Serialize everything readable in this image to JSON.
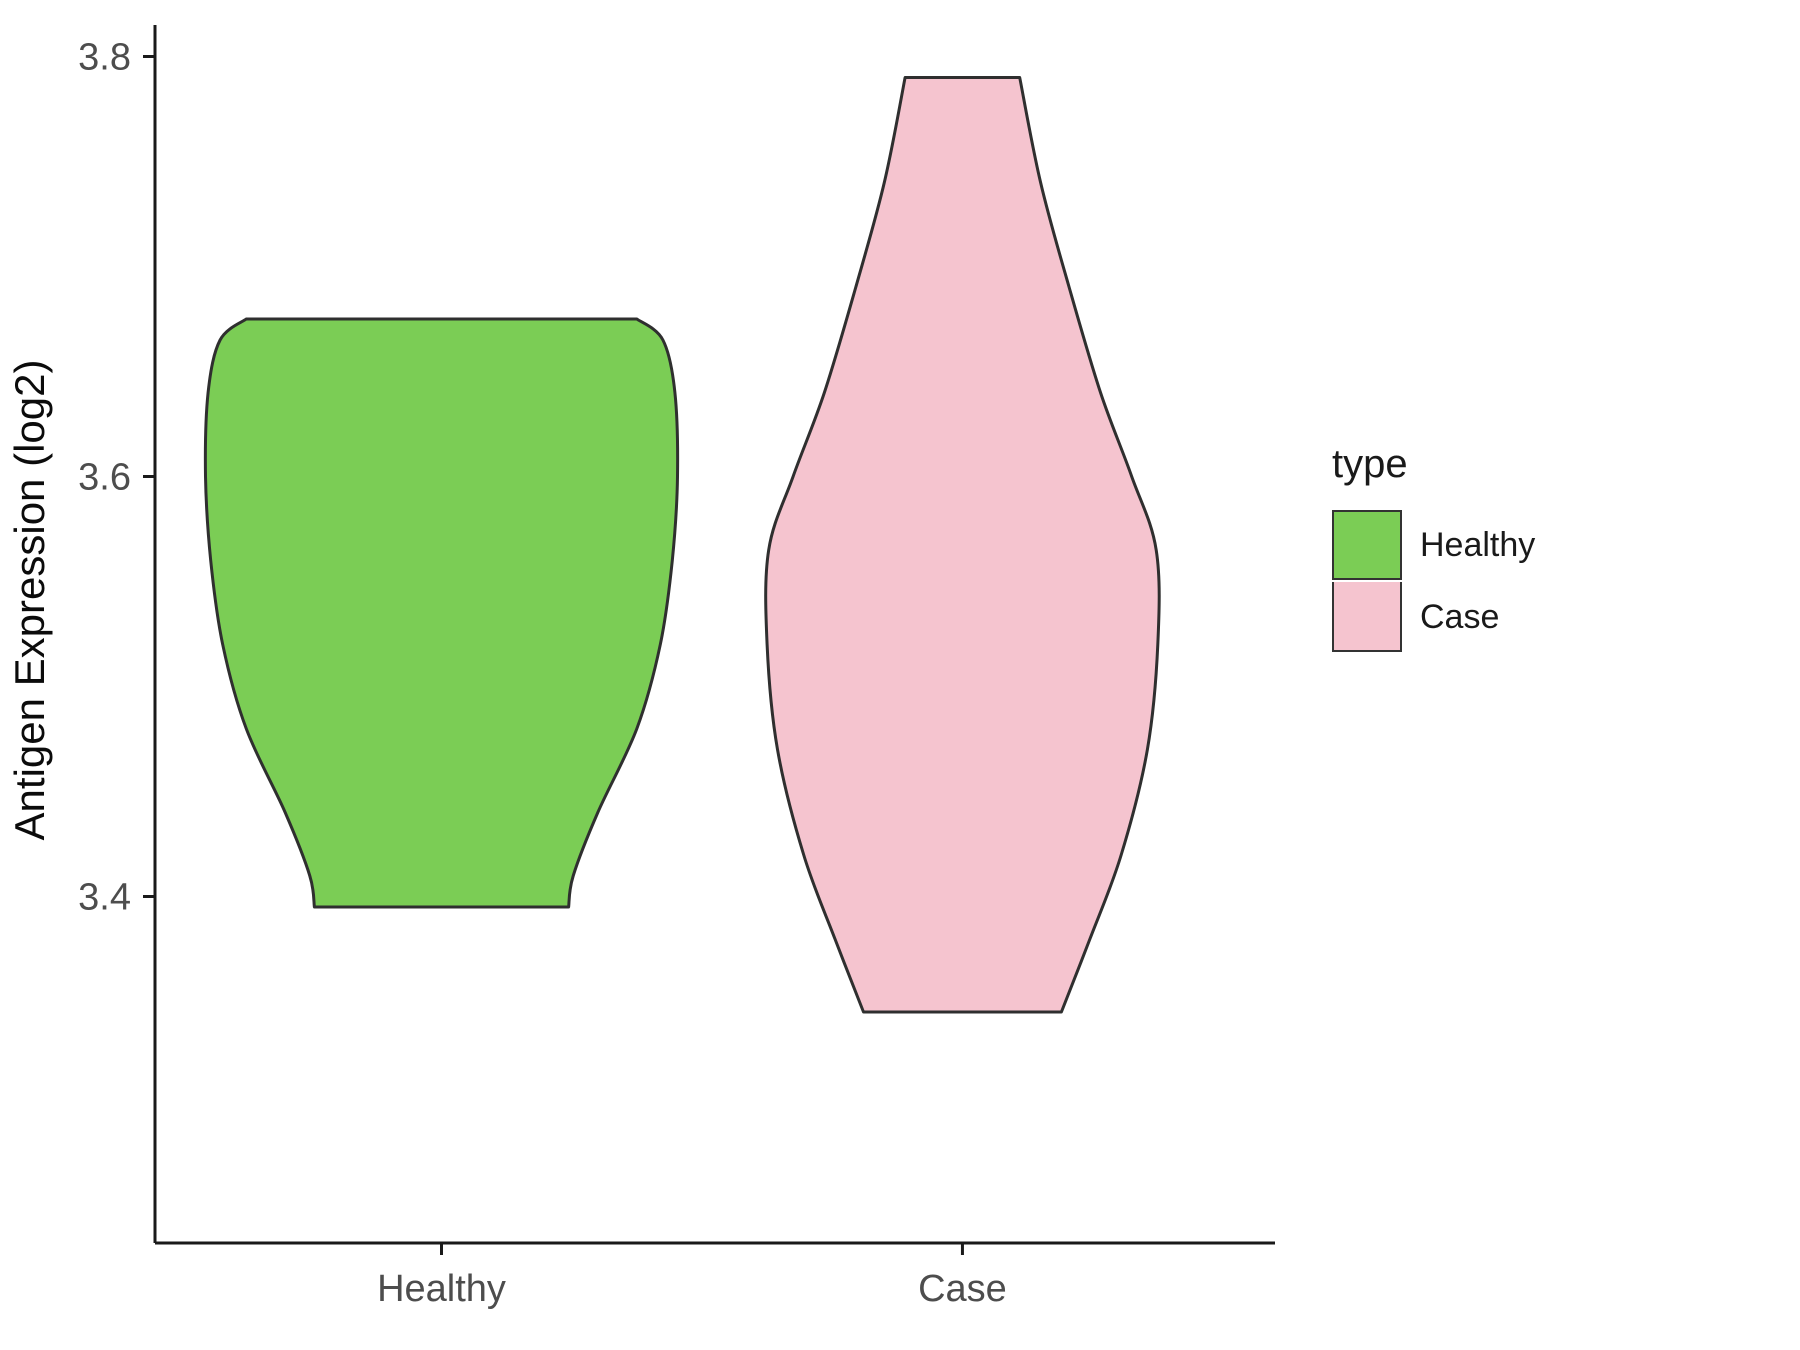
{
  "chart_data": {
    "type": "violin",
    "title": "",
    "xlabel": "",
    "ylabel": "Antigen Expression (log2)",
    "xlim": [
      0.45,
      2.6
    ],
    "ylim": [
      3.235,
      3.815
    ],
    "grid": false,
    "yticks": [
      {
        "value": 3.4,
        "label": "3.4"
      },
      {
        "value": 3.6,
        "label": "3.6"
      },
      {
        "value": 3.8,
        "label": "3.8"
      }
    ],
    "categories": [
      {
        "name": "Healthy",
        "x": 1
      },
      {
        "name": "Case",
        "x": 2
      }
    ],
    "series": [
      {
        "name": "Healthy",
        "x": 1,
        "fill": "#7BCD55",
        "stroke": "#2f2f2f",
        "y_min": 3.395,
        "y_max": 3.675,
        "profile": [
          [
            3.675,
            0.375
          ],
          [
            3.665,
            0.425
          ],
          [
            3.64,
            0.448
          ],
          [
            3.6,
            0.453
          ],
          [
            3.56,
            0.443
          ],
          [
            3.52,
            0.42
          ],
          [
            3.48,
            0.375
          ],
          [
            3.44,
            0.3
          ],
          [
            3.41,
            0.253
          ],
          [
            3.395,
            0.244
          ]
        ]
      },
      {
        "name": "Case",
        "x": 2,
        "fill": "#F5C4CF",
        "stroke": "#2f2f2f",
        "y_min": 3.345,
        "y_max": 3.79,
        "profile": [
          [
            3.79,
            0.11
          ],
          [
            3.74,
            0.15
          ],
          [
            3.69,
            0.205
          ],
          [
            3.64,
            0.265
          ],
          [
            3.6,
            0.325
          ],
          [
            3.565,
            0.372
          ],
          [
            3.52,
            0.375
          ],
          [
            3.47,
            0.355
          ],
          [
            3.42,
            0.305
          ],
          [
            3.38,
            0.245
          ],
          [
            3.345,
            0.19
          ]
        ]
      }
    ],
    "legend": {
      "title": "type",
      "position": "right",
      "entries": [
        "Healthy",
        "Case"
      ]
    },
    "axis_color": "#1a1a1a",
    "tick_label_color": "#4d4d4d"
  }
}
